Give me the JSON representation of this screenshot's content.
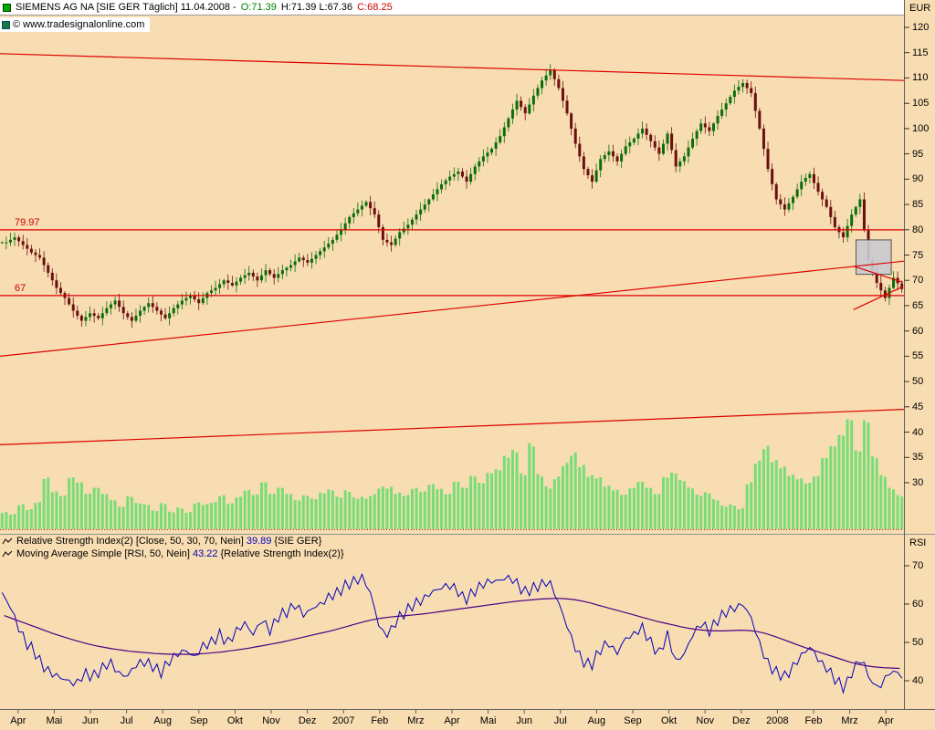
{
  "header": {
    "title": "SIEMENS AG NA [SIE GER  Täglich] 11.04.2008 -",
    "open_label": "O:71.39",
    "high_low_label": "H:71.39 L:67.36",
    "close_label": "C:68.25",
    "currency": "EUR"
  },
  "watermark_text": "© www.tradesignalonline.com",
  "indicators": [
    {
      "name": "Relative Strength Index(2) [Close, 50, 30, 70, Nein]",
      "value": "39.89",
      "suffix": "{SIE GER}"
    },
    {
      "name": "Moving Average Simple [RSI, 50, Nein]",
      "value": "43.22",
      "suffix": "{Relative Strength Index(2)}"
    }
  ],
  "rsi_axis_label": "RSI",
  "colors": {
    "background": "#f8ddb2",
    "up": "#0b6e0b",
    "down": "#6b0f0f",
    "volume": "#77dd77",
    "line_red": "#dd0000",
    "rsi_line": "#0000bb",
    "rsi_ma_line": "#4b0082",
    "box_fill": "#c9c9ce",
    "box_border": "#555555"
  },
  "chart_data": {
    "type": "candlestick",
    "instrument": "SIEMENS AG NA",
    "symbol": "SIE GER",
    "period": "Täglich",
    "date": "11.04.2008",
    "ohlc_last": {
      "open": 71.39,
      "high": 71.39,
      "low": 67.36,
      "close": 68.25
    },
    "price_axis_unit": "EUR",
    "price_ticks": [
      120,
      115,
      110,
      105,
      100,
      95,
      90,
      85,
      80,
      75,
      70,
      65,
      60,
      55,
      50,
      45,
      40,
      35,
      30
    ],
    "x_labels": [
      "Apr",
      "Mai",
      "Jun",
      "Jul",
      "Aug",
      "Sep",
      "Okt",
      "Nov",
      "Dez",
      "2007",
      "Feb",
      "Mrz",
      "Apr",
      "Mai",
      "Jun",
      "Jul",
      "Aug",
      "Sep",
      "Okt",
      "Nov",
      "Dez",
      "2008",
      "Feb",
      "Mrz",
      "Apr"
    ],
    "levels": [
      {
        "label": "79.97",
        "value": 79.97
      },
      {
        "label": "67",
        "value": 67
      }
    ],
    "trendlines": [
      {
        "x1": 0,
        "p1": 114.8,
        "x2": 1,
        "p2": 109.5
      },
      {
        "x1": 0,
        "p1": 55.0,
        "x2": 1,
        "p2": 73.8
      },
      {
        "x1": 0,
        "p1": 37.5,
        "x2": 1,
        "p2": 44.5
      },
      {
        "x1": 0.944,
        "p1": 72.8,
        "x2": 0.999,
        "p2": 69.6
      },
      {
        "x1": 0.944,
        "p1": 64.2,
        "x2": 0.999,
        "p2": 68.8
      }
    ],
    "pattern_box": {
      "x1": 0.947,
      "p_top": 78.0,
      "x2": 0.986,
      "p_bottom": 71.2
    },
    "weekly_closes": [
      77.5,
      78.5,
      77.0,
      75.5,
      74.5,
      71.5,
      68.5,
      66.5,
      64.0,
      62.0,
      63.5,
      62.5,
      64.5,
      66.0,
      63.5,
      62.0,
      64.0,
      65.5,
      64.0,
      62.5,
      64.5,
      66.0,
      67.0,
      65.5,
      67.5,
      68.5,
      70.0,
      69.0,
      70.5,
      71.5,
      70.0,
      72.0,
      70.5,
      72.0,
      73.0,
      74.5,
      73.5,
      75.0,
      76.5,
      78.0,
      80.0,
      82.5,
      84.0,
      85.5,
      83.0,
      78.0,
      77.0,
      79.5,
      81.0,
      83.0,
      85.0,
      87.0,
      89.0,
      90.5,
      91.5,
      89.5,
      92.5,
      94.5,
      96.0,
      98.5,
      102.0,
      105.5,
      103.0,
      106.5,
      109.5,
      111.5,
      108.0,
      103.0,
      97.0,
      92.0,
      89.5,
      94.0,
      95.5,
      93.5,
      96.5,
      98.0,
      100.0,
      97.5,
      95.0,
      99.0,
      92.5,
      94.5,
      98.0,
      101.0,
      99.5,
      102.5,
      105.0,
      107.5,
      109.0,
      107.0,
      100.0,
      92.0,
      86.0,
      84.0,
      86.5,
      89.5,
      91.0,
      87.5,
      84.5,
      80.5,
      78.5,
      83.0,
      86.0,
      74.0,
      69.5,
      66.5,
      70.5,
      68.25
    ],
    "volume_rel": [
      0.25,
      0.2,
      0.3,
      0.22,
      0.28,
      0.5,
      0.35,
      0.3,
      0.45,
      0.4,
      0.3,
      0.35,
      0.3,
      0.25,
      0.2,
      0.3,
      0.25,
      0.25,
      0.2,
      0.3,
      0.22,
      0.3,
      0.25,
      0.35,
      0.3,
      0.3,
      0.35,
      0.25,
      0.3,
      0.35,
      0.3,
      0.4,
      0.3,
      0.35,
      0.3,
      0.25,
      0.3,
      0.28,
      0.35,
      0.4,
      0.35,
      0.45,
      0.4,
      0.45,
      0.5,
      0.55,
      0.5,
      0.4,
      0.35,
      0.4,
      0.35,
      0.4,
      0.35,
      0.3,
      0.4,
      0.35,
      0.45,
      0.4,
      0.5,
      0.55,
      0.7,
      0.8,
      0.6,
      1.0,
      0.7,
      0.6,
      0.75,
      0.85,
      0.9,
      0.7,
      0.55,
      0.5,
      0.4,
      0.35,
      0.3,
      0.35,
      0.4,
      0.35,
      0.3,
      0.45,
      0.5,
      0.45,
      0.4,
      0.35,
      0.4,
      0.35,
      0.3,
      0.35,
      0.3,
      0.6,
      0.8,
      0.9,
      0.7,
      0.6,
      0.5,
      0.45,
      0.4,
      0.45,
      0.6,
      0.7,
      0.8,
      0.95,
      0.7,
      1.0,
      0.7,
      0.55,
      0.45,
      0.4
    ],
    "rsi": {
      "ticks": [
        70,
        60,
        50,
        40
      ],
      "last": 39.89,
      "ma_last": 43.22,
      "values": [
        64,
        60,
        55,
        50,
        48,
        44,
        42,
        41,
        40,
        39,
        42,
        41,
        43,
        45,
        42,
        41,
        44,
        45,
        44,
        42,
        45,
        47,
        48,
        46,
        49,
        50,
        52,
        50,
        53,
        55,
        52,
        56,
        53,
        57,
        58,
        60,
        57,
        59,
        60,
        62,
        63,
        65,
        66,
        67,
        62,
        53,
        52,
        56,
        58,
        60,
        61,
        63,
        64,
        65,
        64,
        61,
        63,
        65,
        66,
        66,
        67,
        66,
        63,
        64,
        65,
        66,
        61,
        55,
        49,
        45,
        44,
        48,
        50,
        47,
        51,
        52,
        54,
        50,
        47,
        52,
        45,
        47,
        52,
        55,
        53,
        56,
        58,
        59,
        60,
        56,
        49,
        44,
        42,
        41,
        44,
        47,
        49,
        45,
        43,
        40,
        38,
        43,
        46,
        40,
        38,
        41,
        43,
        39.89
      ],
      "ma_values": [
        57.0,
        56.2,
        55.4,
        54.6,
        53.8,
        53.0,
        52.2,
        51.5,
        50.8,
        50.2,
        49.6,
        49.1,
        48.7,
        48.3,
        48.0,
        47.7,
        47.5,
        47.3,
        47.1,
        47.0,
        46.9,
        46.9,
        46.9,
        47.0,
        47.1,
        47.3,
        47.5,
        47.8,
        48.1,
        48.4,
        48.8,
        49.2,
        49.6,
        50.0,
        50.5,
        51.0,
        51.5,
        52.0,
        52.5,
        53.0,
        53.6,
        54.2,
        54.8,
        55.4,
        55.9,
        56.3,
        56.6,
        56.8,
        57.0,
        57.2,
        57.4,
        57.7,
        58.0,
        58.3,
        58.6,
        58.9,
        59.2,
        59.5,
        59.8,
        60.1,
        60.4,
        60.7,
        60.9,
        61.1,
        61.3,
        61.4,
        61.5,
        61.4,
        61.2,
        60.8,
        60.3,
        59.7,
        59.1,
        58.5,
        57.9,
        57.3,
        56.7,
        56.1,
        55.5,
        55.0,
        54.5,
        54.0,
        53.6,
        53.3,
        53.1,
        53.0,
        53.0,
        53.1,
        53.2,
        53.1,
        52.8,
        52.3,
        51.6,
        50.8,
        50.0,
        49.2,
        48.4,
        47.7,
        47.0,
        46.3,
        45.6,
        44.9,
        44.3,
        43.9,
        43.6,
        43.4,
        43.3,
        43.22
      ]
    }
  }
}
